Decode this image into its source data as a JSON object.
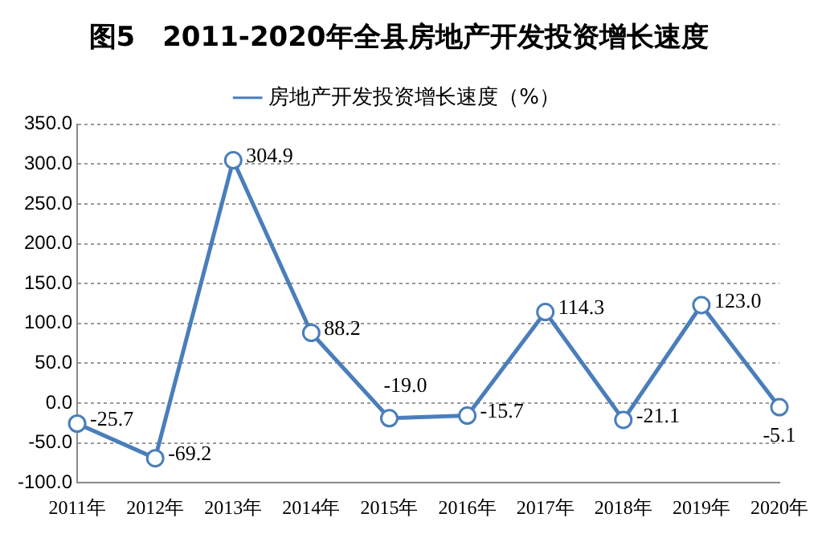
{
  "chart_data": {
    "type": "line",
    "title": "图5　2011-2020年全县房地产开发投资增长速度",
    "categories": [
      "2011年",
      "2012年",
      "2013年",
      "2014年",
      "2015年",
      "2016年",
      "2017年",
      "2018年",
      "2019年",
      "2020年"
    ],
    "series": [
      {
        "name": "房地产开发投资增长速度（%）",
        "color": "#4a7ebb",
        "values": [
          -25.7,
          -69.2,
          304.9,
          88.2,
          -19.0,
          -15.7,
          114.3,
          -21.1,
          123.0,
          -5.1
        ]
      }
    ],
    "value_labels": [
      "-25.7",
      "-69.2",
      "304.9",
      "88.2",
      "-19.0",
      "-15.7",
      "114.3",
      "-21.1",
      "123.0",
      "-5.1"
    ],
    "ylim": [
      -100,
      350
    ],
    "yticks": [
      {
        "value": -100,
        "label": "-100.0"
      },
      {
        "value": -50,
        "label": "-50.0"
      },
      {
        "value": 0,
        "label": "0.0"
      },
      {
        "value": 50,
        "label": "50.0"
      },
      {
        "value": 100,
        "label": "100.0"
      },
      {
        "value": 150,
        "label": "150.0"
      },
      {
        "value": 200,
        "label": "200.0"
      },
      {
        "value": 250,
        "label": "250.0"
      },
      {
        "value": 300,
        "label": "300.0"
      },
      {
        "value": 350,
        "label": "350.0"
      }
    ],
    "grid": "y",
    "legend": "top",
    "marker": "circle",
    "line_style": "solid"
  }
}
